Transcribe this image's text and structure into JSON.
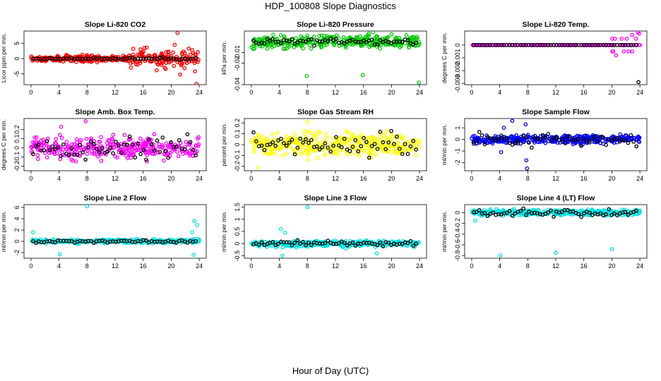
{
  "title": "HDP_100808  Slope Diagnostics",
  "x_caption": "Hour of Day (UTC)",
  "chart_data": [
    {
      "type": "scatter",
      "title": "Slope Li-820 CO2",
      "ylabel": "Licor ppm per min.",
      "xlim": [
        -1,
        25
      ],
      "ylim": [
        -8.5,
        9
      ],
      "xticks": [
        0,
        4,
        8,
        12,
        16,
        20,
        24
      ],
      "yticks": [
        -5,
        0,
        5
      ],
      "color": "#ff0000",
      "n": 340,
      "spread": 0.9,
      "black_spread": 0.35,
      "n_black": 60,
      "outliers": [
        [
          20.9,
          8.4
        ],
        [
          21.3,
          -5.2
        ],
        [
          23.6,
          -8.3
        ],
        [
          20.5,
          4.5
        ],
        [
          14.6,
          3.2
        ],
        [
          16.5,
          3.6
        ],
        [
          19.2,
          -3.4
        ],
        [
          22.5,
          3.3
        ],
        [
          21.9,
          -3.1
        ],
        [
          23.0,
          2.8
        ]
      ],
      "noisy_from": 14,
      "noisy_spread": 2.6
    },
    {
      "type": "scatter",
      "title": "Slope Li-820 Pressure",
      "ylabel": "kPa per min.",
      "xlim": [
        -1,
        25
      ],
      "ylim": [
        -0.04,
        0.01
      ],
      "xticks": [
        0,
        4,
        8,
        12,
        16,
        20,
        24
      ],
      "yticks": [
        -0.04,
        -0.02,
        -0.01
      ],
      "color": "#00cc00",
      "n": 340,
      "spread": 0.0055,
      "black_spread": 0.0028,
      "n_black": 60,
      "outliers": [
        [
          7.9,
          -0.032
        ],
        [
          15.9,
          -0.031
        ],
        [
          23.9,
          -0.038
        ],
        [
          20.0,
          0.007
        ],
        [
          4.2,
          0.006
        ]
      ],
      "noisy_from": 99,
      "noisy_spread": 0
    },
    {
      "type": "scatter",
      "title": "Slope Li-820 Temp.",
      "ylabel": "degrees C per min.",
      "xlim": [
        -1,
        25
      ],
      "ylim": [
        -0.0031,
        0.0011
      ],
      "xticks": [
        0,
        4,
        8,
        12,
        16,
        20,
        24
      ],
      "yticks": [
        -0.003,
        -0.002,
        -0.001,
        0.0
      ],
      "color": "#ff00ff",
      "n": 200,
      "spread": 0.0,
      "black_spread": 0.0,
      "n_black": 60,
      "quantum": 0.0005,
      "outliers": [
        [
          23.8,
          -0.0029
        ],
        [
          22.9,
          0.0008
        ],
        [
          23.9,
          0.0009
        ],
        [
          20.6,
          -0.0008
        ],
        [
          21.4,
          0.0005
        ]
      ],
      "noisy_from": 20,
      "noisy_spread": 0.0006
    },
    {
      "type": "scatter",
      "title": "Slope Amb. Box Temp.",
      "ylabel": "degrees C per min.",
      "xlim": [
        -1,
        25
      ],
      "ylim": [
        -0.25,
        0.32
      ],
      "xticks": [
        0,
        4,
        8,
        12,
        16,
        20,
        24
      ],
      "yticks": [
        -0.2,
        -0.1,
        0.0,
        0.1,
        0.2
      ],
      "color": "#ff00ff",
      "n": 340,
      "spread": 0.11,
      "black_spread": 0.11,
      "n_black": 60,
      "outliers": [
        [
          7.8,
          0.29
        ],
        [
          4.3,
          0.23
        ]
      ],
      "noisy_from": 99,
      "noisy_spread": 0
    },
    {
      "type": "scatter",
      "title": "Slope Gas Stream RH",
      "ylabel": "percent per min.",
      "xlim": [
        -1,
        25
      ],
      "ylim": [
        -0.24,
        0.24
      ],
      "xticks": [
        0,
        4,
        8,
        12,
        16,
        20,
        24
      ],
      "yticks": [
        -0.2,
        -0.1,
        0.0,
        0.1,
        0.2
      ],
      "color": "#ffff00",
      "n": 360,
      "spread": 0.1,
      "black_spread": 0.09,
      "n_black": 60,
      "outliers": [
        [
          1.0,
          -0.21
        ],
        [
          8.0,
          0.21
        ]
      ],
      "noisy_from": 99,
      "noisy_spread": 0
    },
    {
      "type": "scatter",
      "title": "Slope Sample Flow",
      "ylabel": "ml/min per min.",
      "xlim": [
        -1,
        25
      ],
      "ylim": [
        -2.7,
        1.8
      ],
      "xticks": [
        0,
        4,
        8,
        12,
        16,
        20,
        24
      ],
      "yticks": [
        -2,
        -1,
        0,
        1
      ],
      "color": "#0000ff",
      "n": 340,
      "spread": 0.35,
      "black_spread": 0.5,
      "n_black": 60,
      "outliers": [
        [
          5.8,
          1.6
        ],
        [
          7.9,
          -2.5
        ],
        [
          7.7,
          1.3
        ],
        [
          7.8,
          -1.8
        ],
        [
          4.6,
          1.0
        ],
        [
          4.2,
          -1.1
        ]
      ],
      "noisy_from": 99,
      "noisy_spread": 0
    },
    {
      "type": "scatter",
      "title": "Slope Line 2 Flow",
      "ylabel": "ml/min per min.",
      "xlim": [
        -1,
        25
      ],
      "ylim": [
        -3,
        6.5
      ],
      "xticks": [
        0,
        4,
        8,
        12,
        16,
        20,
        24
      ],
      "yticks": [
        -2,
        0,
        2,
        4,
        6
      ],
      "color": "#00e5e5",
      "n": 300,
      "spread": 0.35,
      "black_spread": 0.25,
      "n_black": 60,
      "outliers": [
        [
          8.0,
          6.2
        ],
        [
          4.1,
          -2.3
        ],
        [
          23.3,
          3.6
        ],
        [
          23.7,
          2.9
        ],
        [
          23.2,
          -2.4
        ],
        [
          23.0,
          1.6
        ],
        [
          0.3,
          1.6
        ]
      ],
      "noisy_from": 99,
      "noisy_spread": 0
    },
    {
      "type": "scatter",
      "title": "Slope Line 3 Flow",
      "ylabel": "ml/min per min.",
      "xlim": [
        -1,
        25
      ],
      "ylim": [
        -0.6,
        1.6
      ],
      "xticks": [
        0,
        4,
        8,
        12,
        16,
        20,
        24
      ],
      "yticks": [
        -0.5,
        0.0,
        0.5,
        1.0,
        1.5
      ],
      "color": "#00e5e5",
      "n": 360,
      "spread": 0.12,
      "black_spread": 0.1,
      "n_black": 60,
      "outliers": [
        [
          8.0,
          1.5
        ],
        [
          4.2,
          0.6
        ],
        [
          4.4,
          -0.5
        ],
        [
          17.9,
          -0.4
        ],
        [
          4.8,
          0.45
        ]
      ],
      "noisy_from": 99,
      "noisy_spread": 0
    },
    {
      "type": "scatter",
      "title": "Slope Line 4 (LT) Flow",
      "ylabel": "ml/min per min.",
      "xlim": [
        -1,
        25
      ],
      "ylim": [
        -0.85,
        0.15
      ],
      "xticks": [
        0,
        4,
        8,
        12,
        16,
        20,
        24
      ],
      "yticks": [
        -0.8,
        -0.6,
        -0.4,
        -0.2,
        0.0
      ],
      "color": "#00e5e5",
      "n": 380,
      "spread": 0.05,
      "black_spread": 0.06,
      "n_black": 60,
      "outliers": [
        [
          4.1,
          -0.8
        ],
        [
          12.0,
          -0.75
        ],
        [
          20.0,
          -0.68
        ],
        [
          0.5,
          -0.15
        ]
      ],
      "noisy_from": 99,
      "noisy_spread": 0
    }
  ]
}
